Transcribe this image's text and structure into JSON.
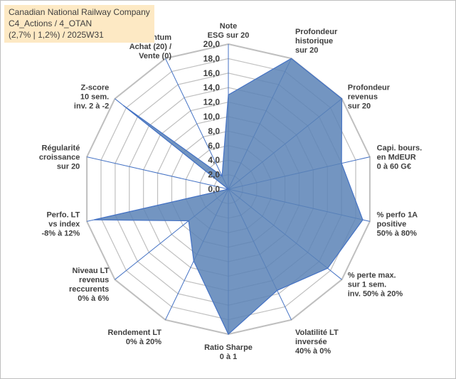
{
  "title": {
    "line1": "Canadian National Railway Company",
    "line2": "C4_Actions / 4_OTAN",
    "line3": "(2,7% | 1,2%) / 2025W31"
  },
  "chart_data": {
    "type": "radar",
    "rmin": 0,
    "rmax": 20,
    "tick_step": 2,
    "tick_labels": [
      "0,0",
      "2,0",
      "4,0",
      "6,0",
      "8,0",
      "10,0",
      "12,0",
      "14,0",
      "16,0",
      "18,0",
      "20,0"
    ],
    "grid": true,
    "fill_color": "#5b83b6",
    "line_color": "#4472c4",
    "grid_color": "#bfbfbf",
    "axes": [
      {
        "label": [
          "Note",
          "ESG sur 20"
        ],
        "value": 13
      },
      {
        "label": [
          "Profondeur",
          "historique",
          "sur 20"
        ],
        "value": 20
      },
      {
        "label": [
          "Profondeur",
          "revenus",
          "sur 20"
        ],
        "value": 20
      },
      {
        "label": [
          "Capi. bours.",
          "en MdEUR",
          "0 à 60 G€"
        ],
        "value": 16
      },
      {
        "label": [
          "% perfo 1A",
          "positive",
          "50% à 80%"
        ],
        "value": 19
      },
      {
        "label": [
          "% perte max.",
          "sur 1 sem.",
          "inv. 50% à 20%"
        ],
        "value": 17.5
      },
      {
        "label": [
          "Volatilité LT",
          "inversée",
          "40% à 0%"
        ],
        "value": 15.5
      },
      {
        "label": [
          "Ratio Sharpe",
          "0 à 1"
        ],
        "value": 20
      },
      {
        "label": [
          "Rendement LT",
          "0% à 20%"
        ],
        "value": 11
      },
      {
        "label": [
          "Niveau LT",
          "revenus",
          "reccurents",
          "0% à 6%"
        ],
        "value": 7
      },
      {
        "label": [
          "Perfo. LT",
          "vs index",
          "-8% à 12%"
        ],
        "value": 19
      },
      {
        "label": [
          "Régularité",
          "croissance",
          "sur 20"
        ],
        "value": 0
      },
      {
        "label": [
          "Z-score",
          "10 sem.",
          "inv. 2 à -2"
        ],
        "value": 18.5
      },
      {
        "label": [
          "Momentum",
          "Achat (20) /",
          "Vente (0)"
        ],
        "value": 2
      }
    ]
  }
}
